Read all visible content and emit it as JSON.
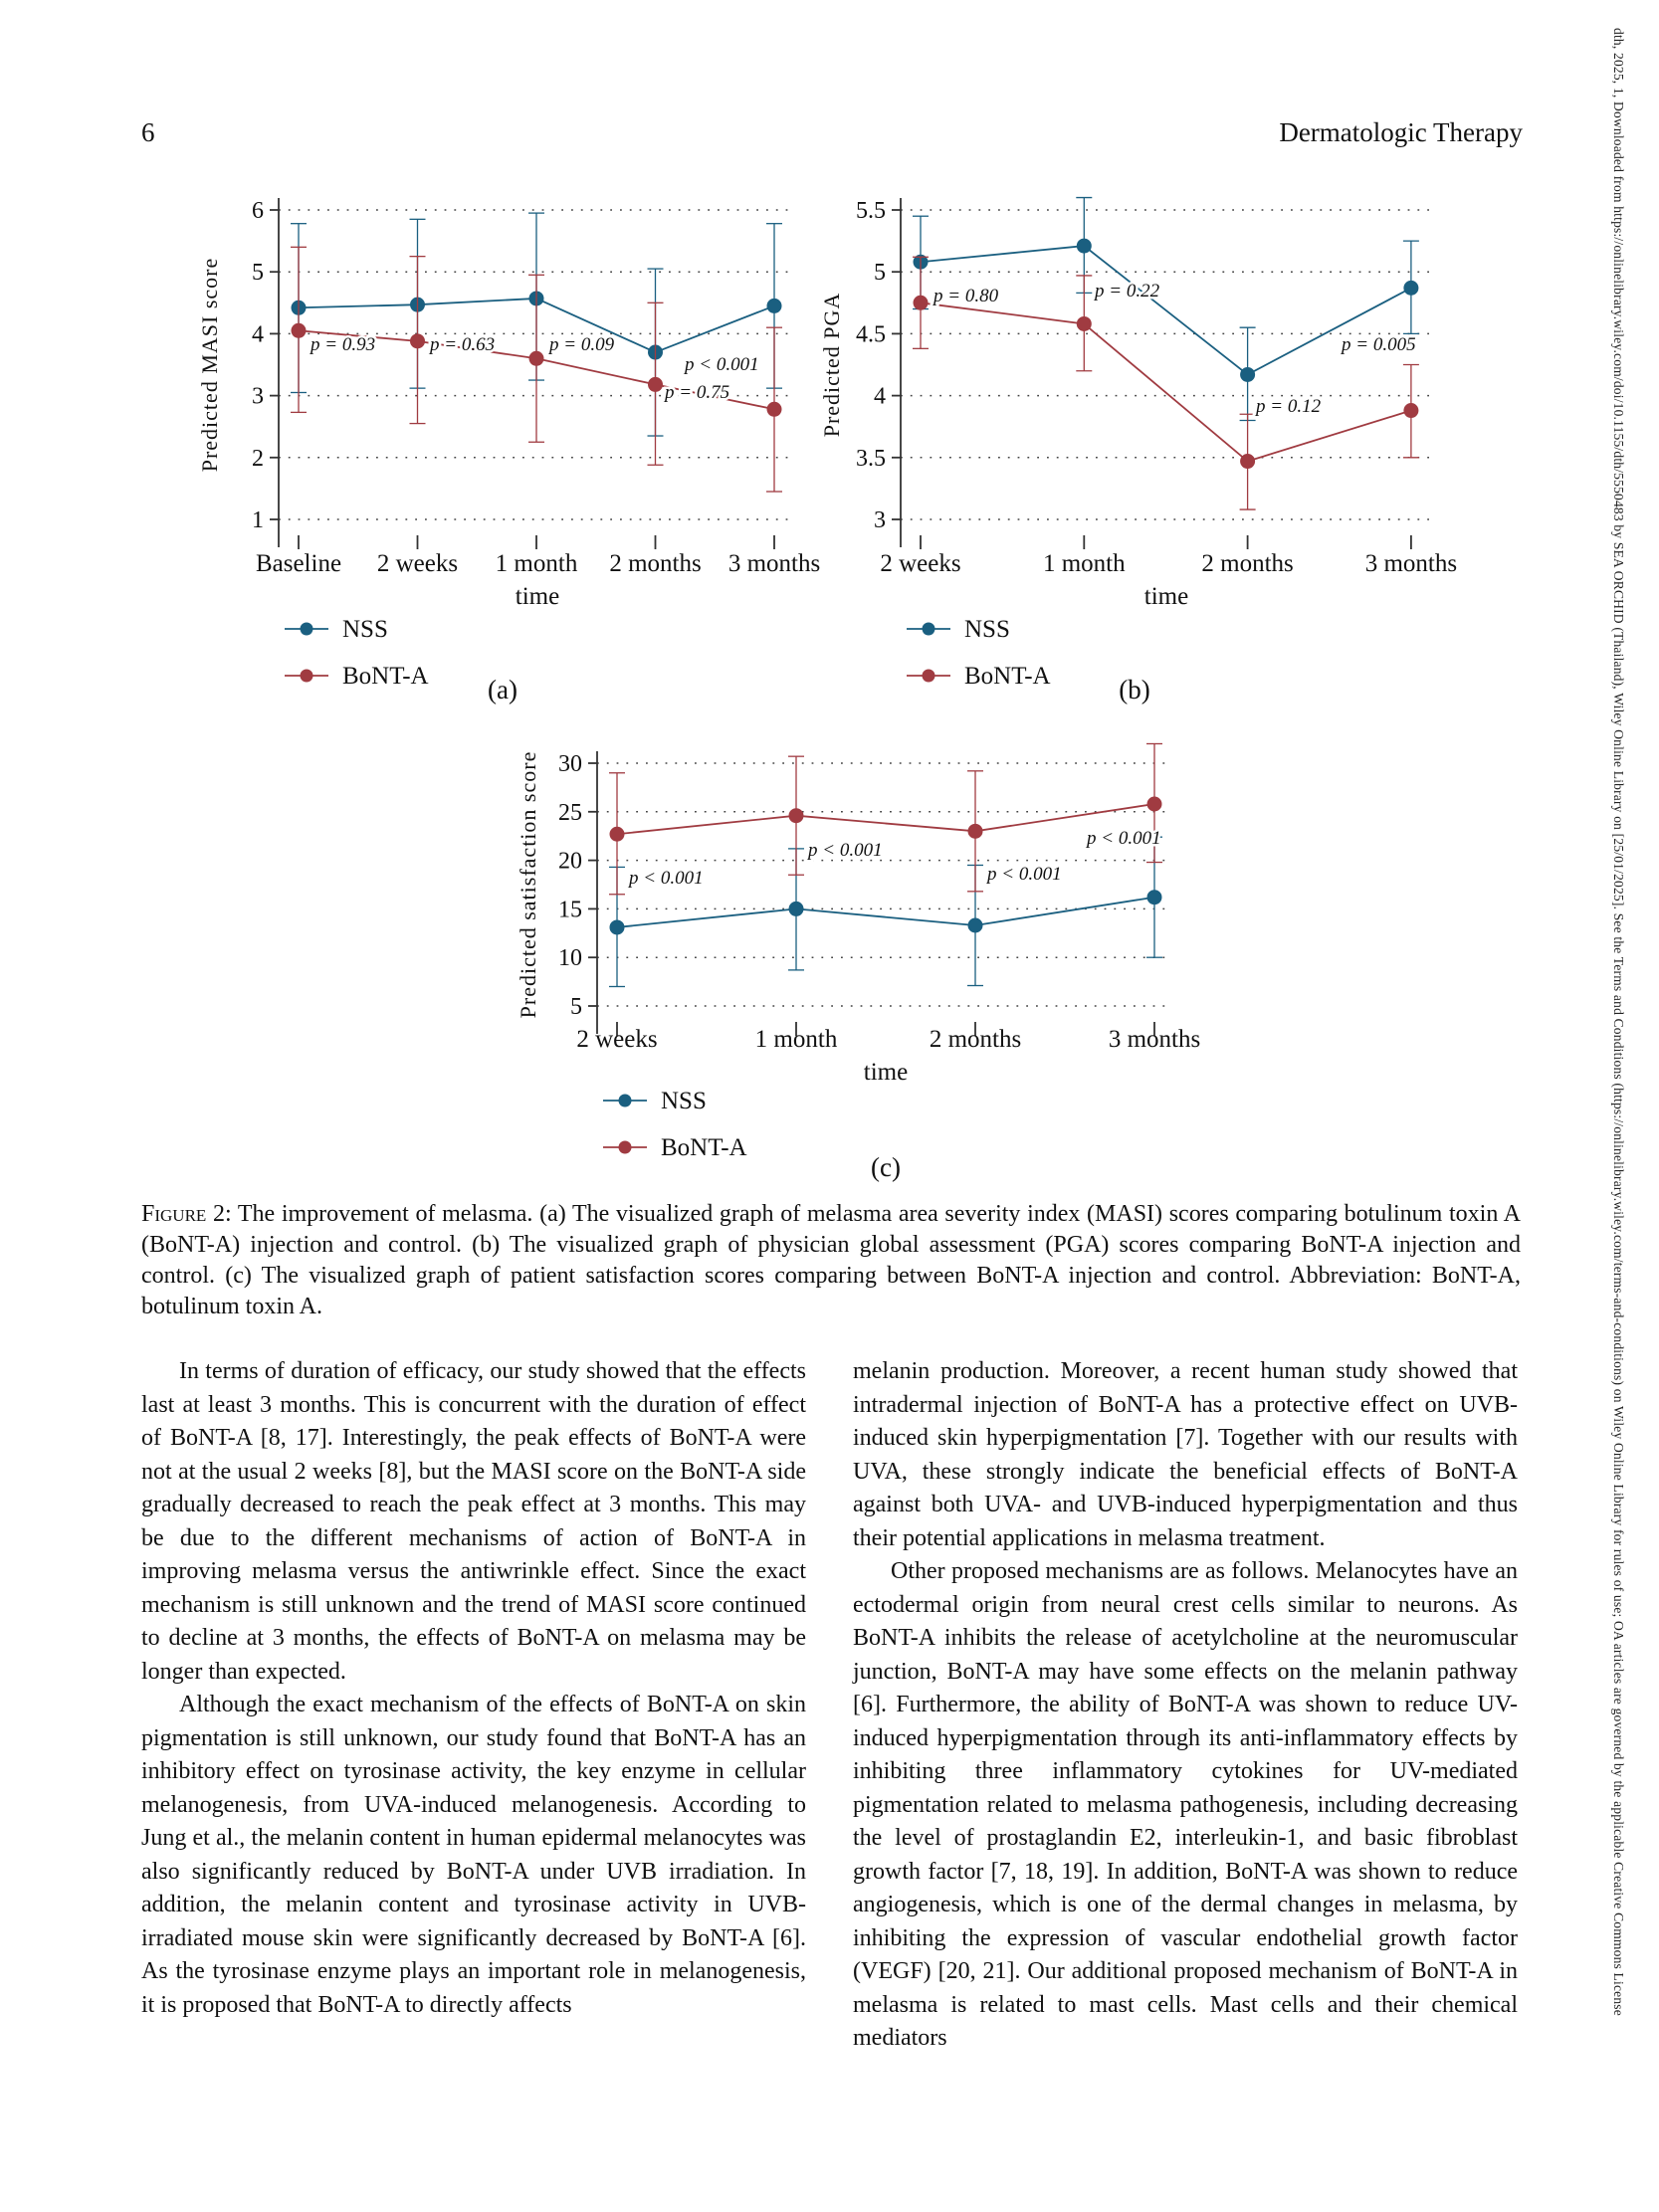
{
  "header": {
    "page_number": "6",
    "journal": "Dermatologic Therapy"
  },
  "sidebar_text": "dth, 2025, 1, Downloaded from https://onlinelibrary.wiley.com/doi/10.1155/dth/5550483 by SEA ORCHID (Thailand), Wiley Online Library on [25/01/2025]. See the Terms and Conditions (https://onlinelibrary.wiley.com/terms-and-conditions) on Wiley Online Library for rules of use; OA articles are governed by the applicable Creative Commons License",
  "colors": {
    "nss": "#1a5f80",
    "bont": "#a03b41",
    "axis": "#333333",
    "grid": "#444444"
  },
  "chart_data": [
    {
      "id": "a",
      "type": "line",
      "panel_label": "(a)",
      "title": "",
      "ylabel": "Predicted MASI score",
      "xlabel": "time",
      "categories": [
        "Baseline",
        "2 weeks",
        "1 month",
        "2 months",
        "3 months"
      ],
      "ylim": [
        1,
        6
      ],
      "yticks": [
        6,
        5,
        4,
        3,
        2,
        1
      ],
      "grid": "dotted-horizontal",
      "legend_position": "below-left",
      "series": [
        {
          "name": "NSS",
          "color": "#1a5f80",
          "values": [
            4.42,
            4.47,
            4.57,
            3.7,
            4.45
          ],
          "ci_upper": [
            5.78,
            5.85,
            5.95,
            5.05,
            5.78
          ],
          "ci_lower": [
            3.05,
            3.12,
            3.25,
            2.35,
            3.12
          ]
        },
        {
          "name": "BoNT-A",
          "color": "#a03b41",
          "values": [
            4.05,
            3.88,
            3.6,
            3.18,
            2.78
          ],
          "ci_upper": [
            5.4,
            5.25,
            4.95,
            4.5,
            4.1
          ],
          "ci_lower": [
            2.73,
            2.55,
            2.25,
            1.88,
            1.45
          ]
        }
      ],
      "p_labels": [
        "p = 0.93",
        "p = 0.63",
        "p = 0.09",
        "p = 0.75",
        "p < 0.001"
      ]
    },
    {
      "id": "b",
      "type": "line",
      "panel_label": "(b)",
      "title": "",
      "ylabel": "Predicted PGA",
      "xlabel": "time",
      "categories": [
        "2 weeks",
        "1 month",
        "2 months",
        "3 months"
      ],
      "ylim": [
        3,
        5.5
      ],
      "yticks": [
        5.5,
        5,
        4.5,
        4,
        3.5,
        3
      ],
      "grid": "dotted-horizontal",
      "legend_position": "below-left",
      "series": [
        {
          "name": "NSS",
          "color": "#1a5f80",
          "values": [
            5.08,
            5.21,
            4.17,
            4.87
          ],
          "ci_upper": [
            5.45,
            5.6,
            4.55,
            5.25
          ],
          "ci_lower": [
            4.7,
            4.83,
            3.8,
            4.5
          ]
        },
        {
          "name": "BoNT-A",
          "color": "#a03b41",
          "values": [
            4.75,
            4.58,
            3.47,
            3.88
          ],
          "ci_upper": [
            5.12,
            4.97,
            3.85,
            4.25
          ],
          "ci_lower": [
            4.38,
            4.2,
            3.08,
            3.5
          ]
        }
      ],
      "p_labels": [
        "p = 0.80",
        "p = 0.22",
        "p = 0.12",
        "p = 0.005"
      ]
    },
    {
      "id": "c",
      "type": "line",
      "panel_label": "(c)",
      "title": "",
      "ylabel": "Predicted satisfaction score",
      "xlabel": "time",
      "categories": [
        "2 weeks",
        "1 month",
        "2 months",
        "3 months"
      ],
      "ylim": [
        5,
        30
      ],
      "yticks": [
        30,
        25,
        20,
        15,
        10,
        5
      ],
      "grid": "dotted-horizontal",
      "legend_position": "below-left",
      "series": [
        {
          "name": "NSS",
          "color": "#1a5f80",
          "values": [
            13.1,
            15.0,
            13.3,
            16.2
          ],
          "ci_upper": [
            19.3,
            21.2,
            19.5,
            22.4
          ],
          "ci_lower": [
            7.0,
            8.7,
            7.1,
            10.0
          ]
        },
        {
          "name": "BoNT-A",
          "color": "#a03b41",
          "values": [
            22.7,
            24.6,
            23.0,
            25.8
          ],
          "ci_upper": [
            29.0,
            30.7,
            29.2,
            32.0
          ],
          "ci_lower": [
            16.5,
            18.5,
            16.8,
            19.8
          ]
        }
      ],
      "p_labels": [
        "p < 0.001",
        "p < 0.001",
        "p < 0.001",
        "p < 0.001"
      ]
    }
  ],
  "figure_caption": {
    "lead": "Figure 2:",
    "text": " The improvement of melasma. (a) The visualized graph of melasma area severity index (MASI) scores comparing botulinum toxin A (BoNT-A) injection and control. (b) The visualized graph of physician global assessment (PGA) scores comparing BoNT-A injection and control. (c) The visualized graph of patient satisfaction scores comparing between BoNT-A injection and control. Abbreviation: BoNT-A, botulinum toxin A."
  },
  "body": {
    "left_column": [
      "In terms of duration of efficacy, our study showed that the effects last at least 3 months. This is concurrent with the duration of effect of BoNT-A [8, 17]. Interestingly, the peak effects of BoNT-A were not at the usual 2 weeks [8], but the MASI score on the BoNT-A side gradually decreased to reach the peak effect at 3 months. This may be due to the different mechanisms of action of BoNT-A in improving melasma versus the antiwrinkle effect. Since the exact mechanism is still unknown and the trend of MASI score continued to decline at 3 months, the effects of BoNT-A on melasma may be longer than expected.",
      "Although the exact mechanism of the effects of BoNT-A on skin pigmentation is still unknown, our study found that BoNT-A has an inhibitory effect on tyrosinase activity, the key enzyme in cellular melanogenesis, from UVA-induced melanogenesis. According to Jung et al., the melanin content in human epidermal melanocytes was also significantly reduced by BoNT-A under UVB irradiation. In addition, the melanin content and tyrosinase activity in UVB-irradiated mouse skin were significantly decreased by BoNT-A [6]. As the tyrosinase enzyme plays an important role in melanogenesis, it is proposed that BoNT-A to directly affects"
    ],
    "right_column": [
      "melanin production. Moreover, a recent human study showed that intradermal injection of BoNT-A has a protective effect on UVB-induced skin hyperpigmentation [7]. Together with our results with UVA, these strongly indicate the beneficial effects of BoNT-A against both UVA- and UVB-induced hyperpigmentation and thus their potential applications in melasma treatment.",
      "Other proposed mechanisms are as follows. Melanocytes have an ectodermal origin from neural crest cells similar to neurons. As BoNT-A inhibits the release of acetylcholine at the neuromuscular junction, BoNT-A may have some effects on the melanin pathway [6]. Furthermore, the ability of BoNT-A was shown to reduce UV-induced hyperpigmentation through its anti-inflammatory effects by inhibiting three inflammatory cytokines for UV-mediated pigmentation related to melasma pathogenesis, including decreasing the level of prostaglandin E2, interleukin-1, and basic fibroblast growth factor [7, 18, 19]. In addition, BoNT-A was shown to reduce angiogenesis, which is one of the dermal changes in melasma, by inhibiting the expression of vascular endothelial growth factor (VEGF) [20, 21]. Our additional proposed mechanism of BoNT-A in melasma is related to mast cells. Mast cells and their chemical mediators"
    ]
  }
}
